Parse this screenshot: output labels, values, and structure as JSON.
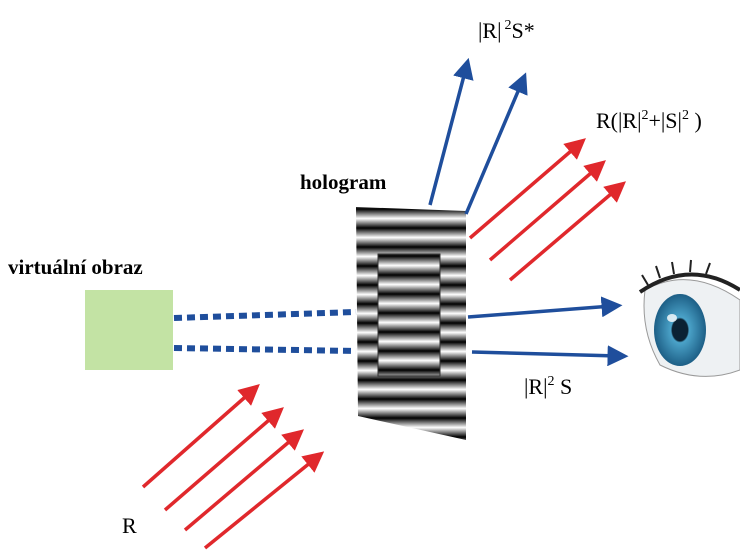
{
  "labels": {
    "hologram": "hologram",
    "virtual_image": "virtuální obraz",
    "reference": "R",
    "conjugate": {
      "base": "|R|",
      "exp": "2",
      "tail": "S*"
    },
    "zero_order": {
      "part1": "R(|R|",
      "exp1": "2",
      "part2": "+|S|",
      "exp2": "2",
      "part3": " )"
    },
    "object_wave": {
      "base": "|R|",
      "exp": "2",
      "tail": " S"
    }
  }
}
